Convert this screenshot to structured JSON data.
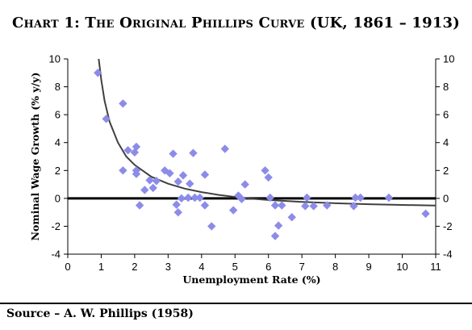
{
  "title": "Chart 1: The Original Phillips Curve (UK, 1861 – 1913)",
  "source": "Source – A. W. Phillips (1958)",
  "chart_data": {
    "type": "scatter",
    "title": "Chart 1: The Original Phillips Curve (UK, 1861 – 1913)",
    "xlabel": "Unemployment Rate (%)",
    "ylabel": "Nominal Wage Growth (% y/y)",
    "xlim": [
      0,
      11
    ],
    "ylim": [
      -4,
      10
    ],
    "xticks": [
      0,
      1,
      2,
      3,
      4,
      5,
      6,
      7,
      8,
      9,
      10,
      11
    ],
    "yticks": [
      -4,
      -2,
      0,
      2,
      4,
      6,
      8,
      10
    ],
    "grid": false,
    "marker_color": "#8c8ce8",
    "curve_color": "#404040",
    "zero_line": true,
    "points": [
      [
        0.9,
        9.0
      ],
      [
        1.15,
        5.7
      ],
      [
        1.65,
        6.8
      ],
      [
        1.65,
        2.0
      ],
      [
        1.8,
        3.45
      ],
      [
        2.0,
        3.3
      ],
      [
        2.05,
        3.7
      ],
      [
        2.05,
        2.0
      ],
      [
        2.05,
        1.75
      ],
      [
        2.15,
        -0.5
      ],
      [
        2.3,
        0.6
      ],
      [
        2.45,
        1.3
      ],
      [
        2.55,
        0.75
      ],
      [
        2.65,
        1.25
      ],
      [
        2.9,
        2.0
      ],
      [
        3.05,
        1.8
      ],
      [
        3.15,
        3.2
      ],
      [
        3.25,
        -0.45
      ],
      [
        3.3,
        1.2
      ],
      [
        3.3,
        -1.0
      ],
      [
        3.4,
        0.0
      ],
      [
        3.45,
        1.65
      ],
      [
        3.6,
        0.05
      ],
      [
        3.65,
        1.05
      ],
      [
        3.75,
        3.25
      ],
      [
        3.8,
        0.05
      ],
      [
        3.95,
        0.05
      ],
      [
        4.1,
        1.7
      ],
      [
        4.1,
        -0.5
      ],
      [
        4.3,
        -2.0
      ],
      [
        4.7,
        3.55
      ],
      [
        4.95,
        -0.85
      ],
      [
        5.1,
        0.2
      ],
      [
        5.2,
        -0.05
      ],
      [
        5.3,
        1.0
      ],
      [
        5.9,
        2.0
      ],
      [
        6.0,
        1.5
      ],
      [
        6.05,
        0.05
      ],
      [
        6.2,
        -0.5
      ],
      [
        6.2,
        -2.7
      ],
      [
        6.3,
        -1.95
      ],
      [
        6.4,
        -0.5
      ],
      [
        6.7,
        -1.35
      ],
      [
        7.1,
        -0.55
      ],
      [
        7.15,
        0.05
      ],
      [
        7.35,
        -0.55
      ],
      [
        7.75,
        -0.5
      ],
      [
        8.55,
        -0.55
      ],
      [
        8.6,
        0.05
      ],
      [
        8.75,
        0.05
      ],
      [
        9.6,
        0.05
      ],
      [
        10.7,
        -1.1
      ]
    ],
    "curve": {
      "label": "",
      "x": [
        0.9,
        1.0,
        1.1,
        1.25,
        1.5,
        1.75,
        2.0,
        2.5,
        3.0,
        3.5,
        4.0,
        4.5,
        5.0,
        5.5,
        6.0,
        7.0,
        8.0,
        9.0,
        10.0,
        11.0
      ],
      "y": [
        10.5,
        8.5,
        7.0,
        5.5,
        4.0,
        3.0,
        2.4,
        1.55,
        1.05,
        0.7,
        0.45,
        0.25,
        0.1,
        -0.02,
        -0.12,
        -0.25,
        -0.35,
        -0.42,
        -0.47,
        -0.52
      ]
    }
  }
}
